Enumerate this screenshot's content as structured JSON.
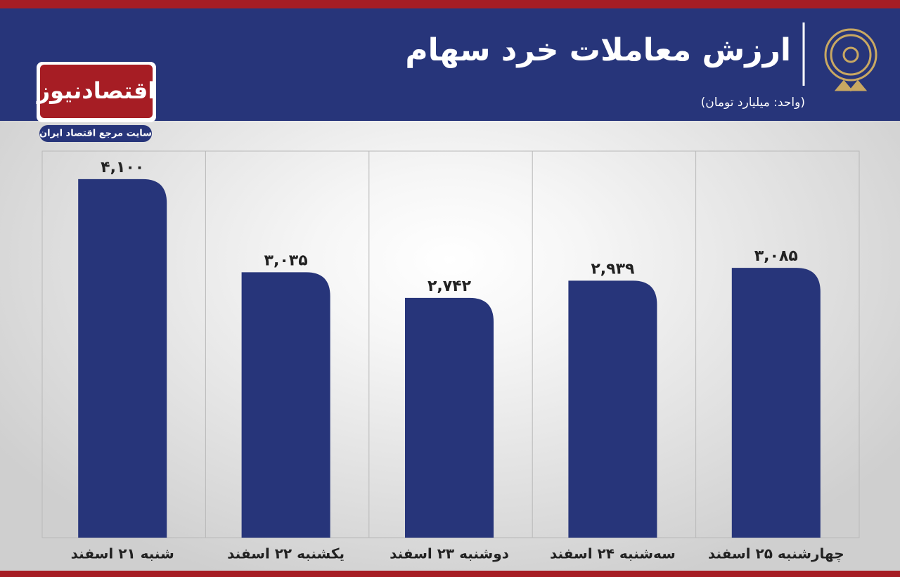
{
  "brand": {
    "name": "اقتصادنیوز",
    "tagline": "سایت مرجع اقتصاد ایران"
  },
  "chart_data": {
    "type": "bar",
    "title": "ارزش معاملات خرد سهام",
    "subtitle": "(واحد: میلیارد تومان)",
    "categories": [
      "شنبه ۲۱ اسفند",
      "یکشنبه ۲۲ اسفند",
      "دوشنبه ۲۳ اسفند",
      "سه‌شنبه ۲۴ اسفند",
      "چهارشنبه ۲۵ اسفند"
    ],
    "values": [
      4100,
      3035,
      2742,
      2939,
      3085
    ],
    "value_labels": [
      "۴,۱۰۰",
      "۳,۰۳۵",
      "۲,۷۴۲",
      "۲,۹۳۹",
      "۳,۰۸۵"
    ],
    "color": "#27357a",
    "ylim": [
      0,
      4300
    ]
  }
}
